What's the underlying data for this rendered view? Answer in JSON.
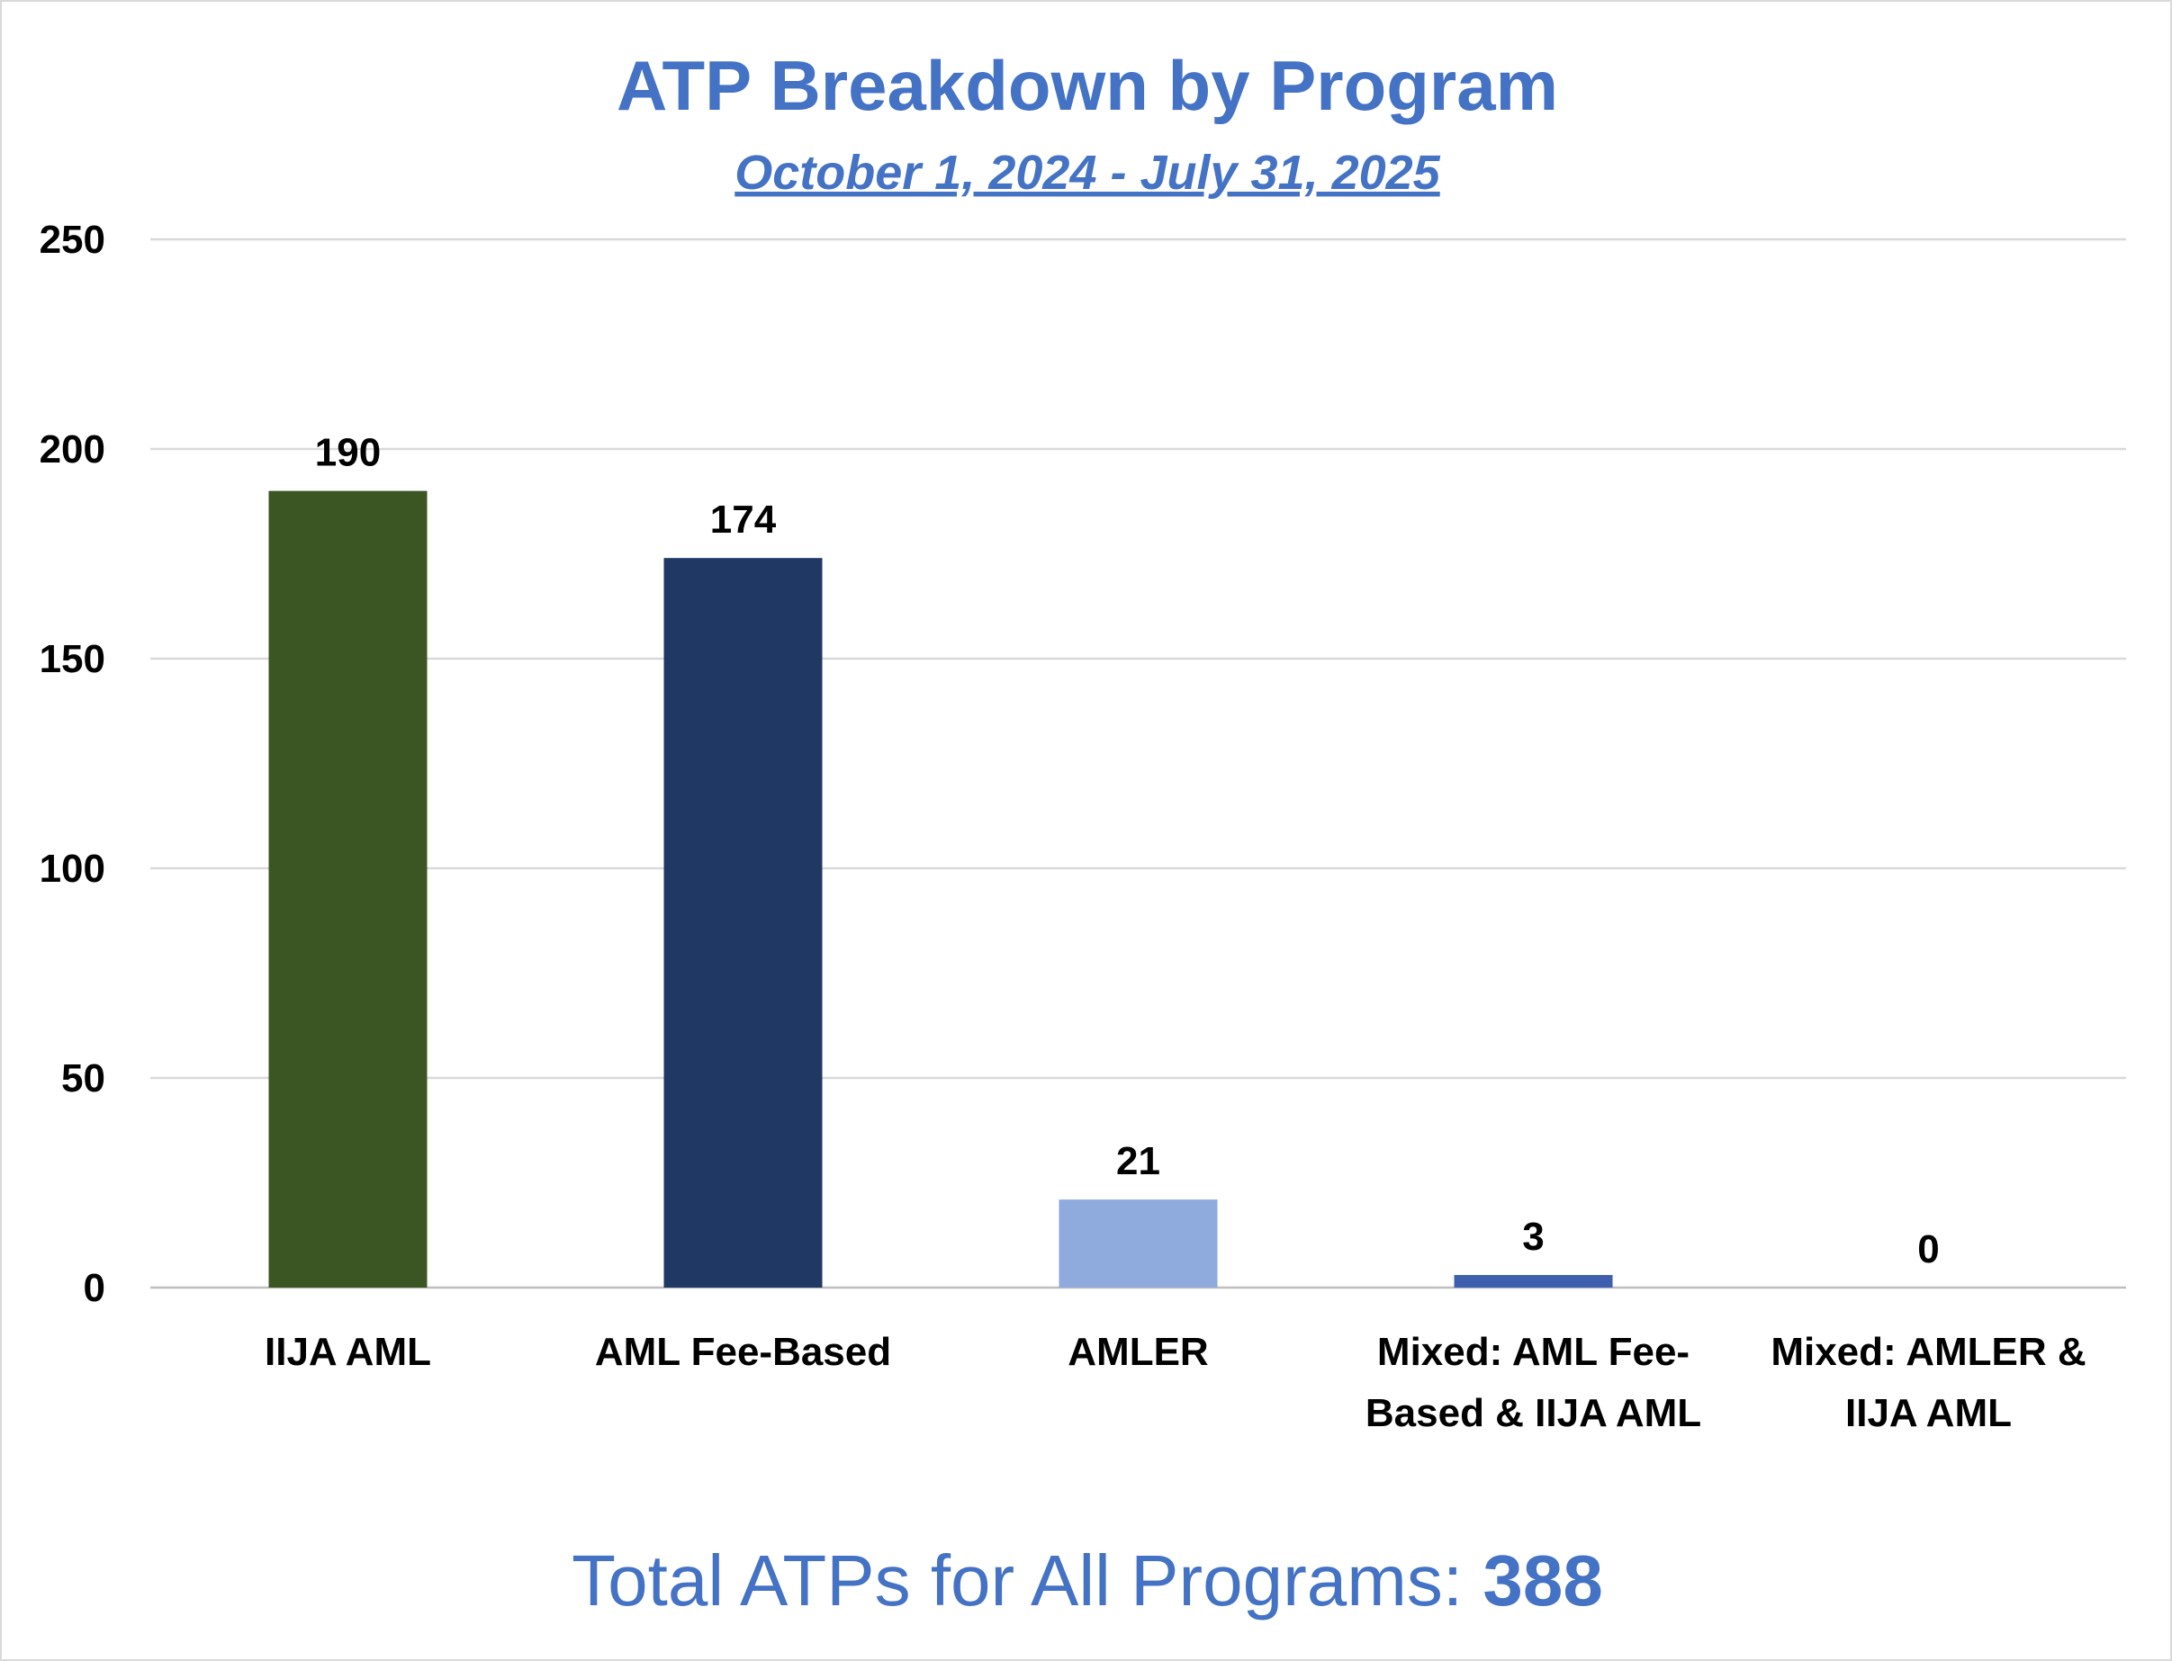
{
  "chart_data": {
    "type": "bar",
    "title": "ATP Breakdown by Program",
    "subtitle": "October 1, 2024 - July 31, 2025",
    "categories": [
      [
        "IIJA AML"
      ],
      [
        "AML Fee-Based"
      ],
      [
        "AMLER"
      ],
      [
        "Mixed: AML Fee-",
        "Based & IIJA AML"
      ],
      [
        "Mixed: AMLER &",
        "IIJA AML"
      ]
    ],
    "values": [
      190,
      174,
      21,
      3,
      0
    ],
    "colors": [
      "#3b5523",
      "#203864",
      "#8faadc",
      "#3e5fad",
      "#3e5fad"
    ],
    "ylim": [
      0,
      250
    ],
    "yticks": [
      0,
      50,
      100,
      150,
      200,
      250
    ],
    "grid": true,
    "legend": "none",
    "xlabel": "",
    "ylabel": ""
  },
  "footer": {
    "total_label": "Total ATPs for All Programs: ",
    "total_value": "388"
  }
}
